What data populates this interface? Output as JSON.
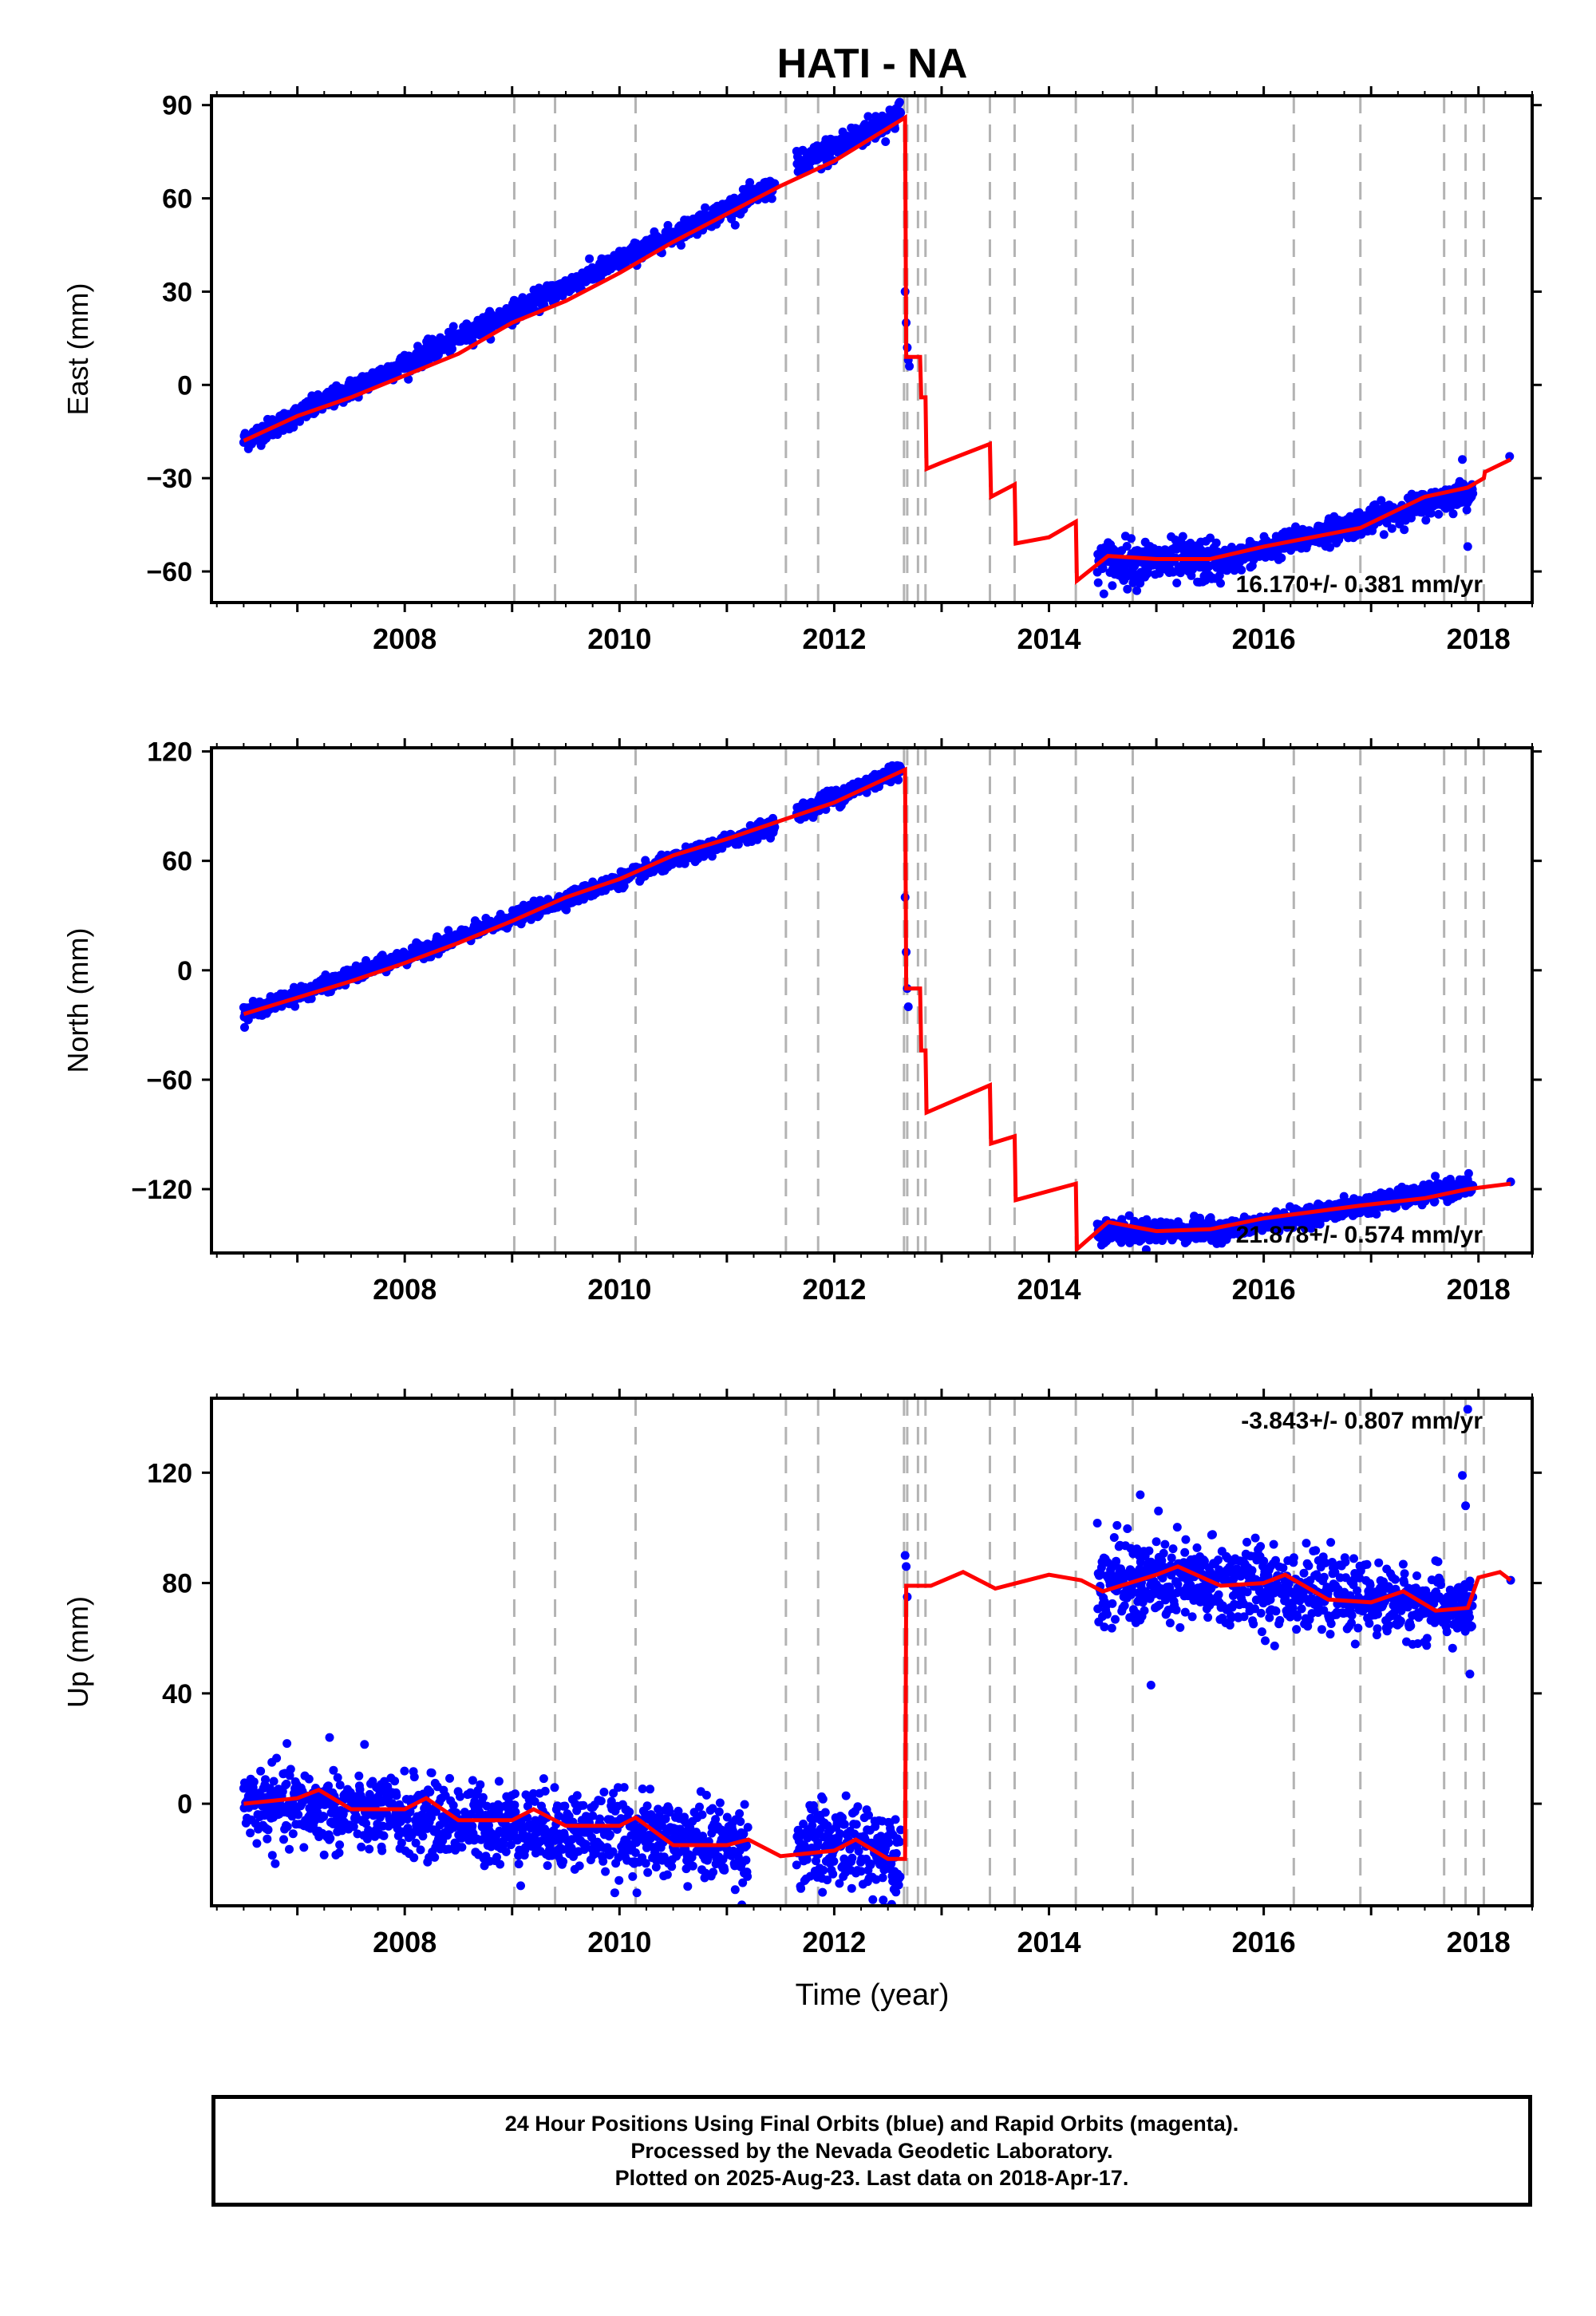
{
  "title": "HATI - NA",
  "xlabel": "Time (year)",
  "footer": {
    "line1": "24 Hour Positions Using Final Orbits (blue) and Rapid Orbits (magenta).",
    "line2": "Processed by the Nevada Geodetic Laboratory.",
    "line3": "Plotted on 2025-Aug-23. Last data on 2018-Apr-17."
  },
  "colors": {
    "points": "#0000ff",
    "model": "#ff0000",
    "event_lines": "#b3b3b3"
  },
  "chart_data": [
    {
      "type": "scatter",
      "ylabel": "East (mm)",
      "xlim": [
        2006.2,
        2018.5
      ],
      "ylim": [
        -70,
        93
      ],
      "xticks": [
        2008,
        2010,
        2012,
        2014,
        2016,
        2018
      ],
      "yticks": [
        -60,
        -30,
        0,
        30,
        60,
        90
      ],
      "rate_label": "16.170+/- 0.381 mm/yr",
      "event_lines": [
        2009.02,
        2009.4,
        2010.15,
        2011.55,
        2011.85,
        2012.65,
        2012.68,
        2012.78,
        2012.85,
        2013.45,
        2013.68,
        2014.25,
        2014.78,
        2016.28,
        2016.9,
        2017.68,
        2017.88,
        2018.05
      ],
      "points": {
        "segments": [
          {
            "start": 2006.5,
            "end": 2011.45,
            "v0": -18,
            "v1": 64,
            "spread": 1.6
          },
          {
            "start": 2011.65,
            "end": 2012.62,
            "v0": 70,
            "v1": 87,
            "spread": 2.2
          },
          {
            "start": 2014.45,
            "end": 2015.6,
            "v0": -57,
            "v1": -57,
            "spread": 3.5
          },
          {
            "start": 2015.6,
            "end": 2017.95,
            "v0": -57,
            "v1": -34,
            "spread": 2.0
          }
        ],
        "extra": [
          [
            2012.66,
            30
          ],
          [
            2012.67,
            20
          ],
          [
            2012.68,
            12
          ],
          [
            2012.69,
            8
          ],
          [
            2012.7,
            6
          ],
          [
            2017.85,
            -24
          ],
          [
            2017.9,
            -52
          ],
          [
            2018.29,
            -23
          ]
        ]
      },
      "model": [
        [
          2006.5,
          -18
        ],
        [
          2007.0,
          -10
        ],
        [
          2007.5,
          -4
        ],
        [
          2008.0,
          3
        ],
        [
          2008.5,
          10
        ],
        [
          2009.0,
          20
        ],
        [
          2009.5,
          27
        ],
        [
          2010.0,
          36
        ],
        [
          2010.5,
          46
        ],
        [
          2011.0,
          55
        ],
        [
          2011.5,
          64
        ],
        [
          2012.0,
          72
        ],
        [
          2012.66,
          86
        ],
        [
          2012.67,
          9
        ],
        [
          2012.8,
          9
        ],
        [
          2012.81,
          -4
        ],
        [
          2012.85,
          -4
        ],
        [
          2012.86,
          -27
        ],
        [
          2013.0,
          -25
        ],
        [
          2013.45,
          -19
        ],
        [
          2013.46,
          -36
        ],
        [
          2013.68,
          -32
        ],
        [
          2013.69,
          -51
        ],
        [
          2014.0,
          -49
        ],
        [
          2014.25,
          -44
        ],
        [
          2014.26,
          -63
        ],
        [
          2014.55,
          -55
        ],
        [
          2015.0,
          -56
        ],
        [
          2015.5,
          -56
        ],
        [
          2016.0,
          -52
        ],
        [
          2016.9,
          -46
        ],
        [
          2017.5,
          -36
        ],
        [
          2017.9,
          -33
        ],
        [
          2018.05,
          -30
        ],
        [
          2018.06,
          -28
        ],
        [
          2018.3,
          -24
        ]
      ]
    },
    {
      "type": "scatter",
      "ylabel": "North (mm)",
      "xlim": [
        2006.2,
        2018.5
      ],
      "ylim": [
        -155,
        122
      ],
      "xticks": [
        2008,
        2010,
        2012,
        2014,
        2016,
        2018
      ],
      "yticks": [
        -120,
        -60,
        0,
        60,
        120
      ],
      "rate_label": "21.878+/- 0.574 mm/yr",
      "event_lines": [
        2009.02,
        2009.4,
        2010.15,
        2011.55,
        2011.85,
        2012.65,
        2012.68,
        2012.78,
        2012.85,
        2013.45,
        2013.68,
        2014.25,
        2014.78,
        2016.28,
        2016.9,
        2017.68,
        2017.88,
        2018.05
      ],
      "points": {
        "segments": [
          {
            "start": 2006.5,
            "end": 2011.45,
            "v0": -24,
            "v1": 80,
            "spread": 2.0
          },
          {
            "start": 2011.65,
            "end": 2012.62,
            "v0": 86,
            "v1": 110,
            "spread": 2.5
          },
          {
            "start": 2014.45,
            "end": 2015.6,
            "v0": -143,
            "v1": -143,
            "spread": 3.0
          },
          {
            "start": 2015.6,
            "end": 2017.95,
            "v0": -143,
            "v1": -118,
            "spread": 2.5
          }
        ],
        "extra": [
          [
            2012.66,
            40
          ],
          [
            2012.67,
            10
          ],
          [
            2012.68,
            -10
          ],
          [
            2012.69,
            -20
          ],
          [
            2018.3,
            -116
          ]
        ]
      },
      "model": [
        [
          2006.5,
          -24
        ],
        [
          2007.0,
          -15
        ],
        [
          2007.5,
          -6
        ],
        [
          2008.0,
          4
        ],
        [
          2008.5,
          15
        ],
        [
          2009.0,
          27
        ],
        [
          2009.5,
          40
        ],
        [
          2010.0,
          50
        ],
        [
          2010.5,
          63
        ],
        [
          2011.0,
          72
        ],
        [
          2011.5,
          82
        ],
        [
          2012.0,
          92
        ],
        [
          2012.66,
          110
        ],
        [
          2012.67,
          -10
        ],
        [
          2012.8,
          -10
        ],
        [
          2012.81,
          -44
        ],
        [
          2012.85,
          -44
        ],
        [
          2012.86,
          -78
        ],
        [
          2013.45,
          -63
        ],
        [
          2013.46,
          -95
        ],
        [
          2013.68,
          -91
        ],
        [
          2013.69,
          -126
        ],
        [
          2014.25,
          -117
        ],
        [
          2014.26,
          -153
        ],
        [
          2014.55,
          -138
        ],
        [
          2015.0,
          -143
        ],
        [
          2015.5,
          -142
        ],
        [
          2016.0,
          -136
        ],
        [
          2016.9,
          -129
        ],
        [
          2017.5,
          -125
        ],
        [
          2017.9,
          -120
        ],
        [
          2018.3,
          -117
        ]
      ]
    },
    {
      "type": "scatter",
      "ylabel": "Up (mm)",
      "xlim": [
        2006.2,
        2018.5
      ],
      "ylim": [
        -37,
        147
      ],
      "xticks": [
        2008,
        2010,
        2012,
        2014,
        2016,
        2018
      ],
      "yticks": [
        0,
        40,
        80,
        120
      ],
      "rate_label": "-3.843+/- 0.807 mm/yr",
      "event_lines": [
        2009.02,
        2009.4,
        2010.15,
        2011.55,
        2011.85,
        2012.65,
        2012.68,
        2012.78,
        2012.85,
        2013.45,
        2013.68,
        2014.25,
        2014.78,
        2016.28,
        2016.9,
        2017.68,
        2017.88,
        2018.05
      ],
      "points": {
        "segments": [
          {
            "start": 2006.5,
            "end": 2011.2,
            "v0": 0,
            "v1": -15,
            "spread": 7.0
          },
          {
            "start": 2011.65,
            "end": 2012.62,
            "v0": -16,
            "v1": -16,
            "spread": 8.0
          },
          {
            "start": 2014.45,
            "end": 2016.3,
            "v0": 80,
            "v1": 79,
            "spread": 8.0
          },
          {
            "start": 2016.3,
            "end": 2017.95,
            "v0": 77,
            "v1": 70,
            "spread": 6.0
          }
        ],
        "extra": [
          [
            2007.3,
            24
          ],
          [
            2012.66,
            90
          ],
          [
            2012.67,
            86
          ],
          [
            2012.68,
            75
          ],
          [
            2014.85,
            112
          ],
          [
            2015.0,
            95
          ],
          [
            2014.95,
            43
          ],
          [
            2017.85,
            119
          ],
          [
            2017.88,
            108
          ],
          [
            2017.9,
            143
          ],
          [
            2017.92,
            47
          ],
          [
            2018.3,
            81
          ]
        ]
      },
      "model": [
        [
          2006.5,
          0
        ],
        [
          2007.0,
          2
        ],
        [
          2007.2,
          5
        ],
        [
          2007.5,
          -2
        ],
        [
          2008.0,
          -2
        ],
        [
          2008.2,
          2
        ],
        [
          2008.5,
          -6
        ],
        [
          2009.0,
          -6
        ],
        [
          2009.2,
          -2
        ],
        [
          2009.5,
          -8
        ],
        [
          2010.0,
          -8
        ],
        [
          2010.15,
          -5
        ],
        [
          2010.5,
          -15
        ],
        [
          2011.0,
          -15
        ],
        [
          2011.2,
          -13
        ],
        [
          2011.5,
          -19
        ],
        [
          2012.0,
          -17
        ],
        [
          2012.2,
          -13
        ],
        [
          2012.5,
          -20
        ],
        [
          2012.66,
          -20
        ],
        [
          2012.67,
          79
        ],
        [
          2012.9,
          79
        ],
        [
          2013.2,
          84
        ],
        [
          2013.5,
          78
        ],
        [
          2014.0,
          83
        ],
        [
          2014.3,
          81
        ],
        [
          2014.5,
          77
        ],
        [
          2015.0,
          83
        ],
        [
          2015.2,
          86
        ],
        [
          2015.6,
          79
        ],
        [
          2016.0,
          80
        ],
        [
          2016.2,
          83
        ],
        [
          2016.6,
          74
        ],
        [
          2017.0,
          73
        ],
        [
          2017.3,
          77
        ],
        [
          2017.6,
          70
        ],
        [
          2017.9,
          71
        ],
        [
          2018.0,
          82
        ],
        [
          2018.2,
          84
        ],
        [
          2018.3,
          81
        ]
      ]
    }
  ]
}
